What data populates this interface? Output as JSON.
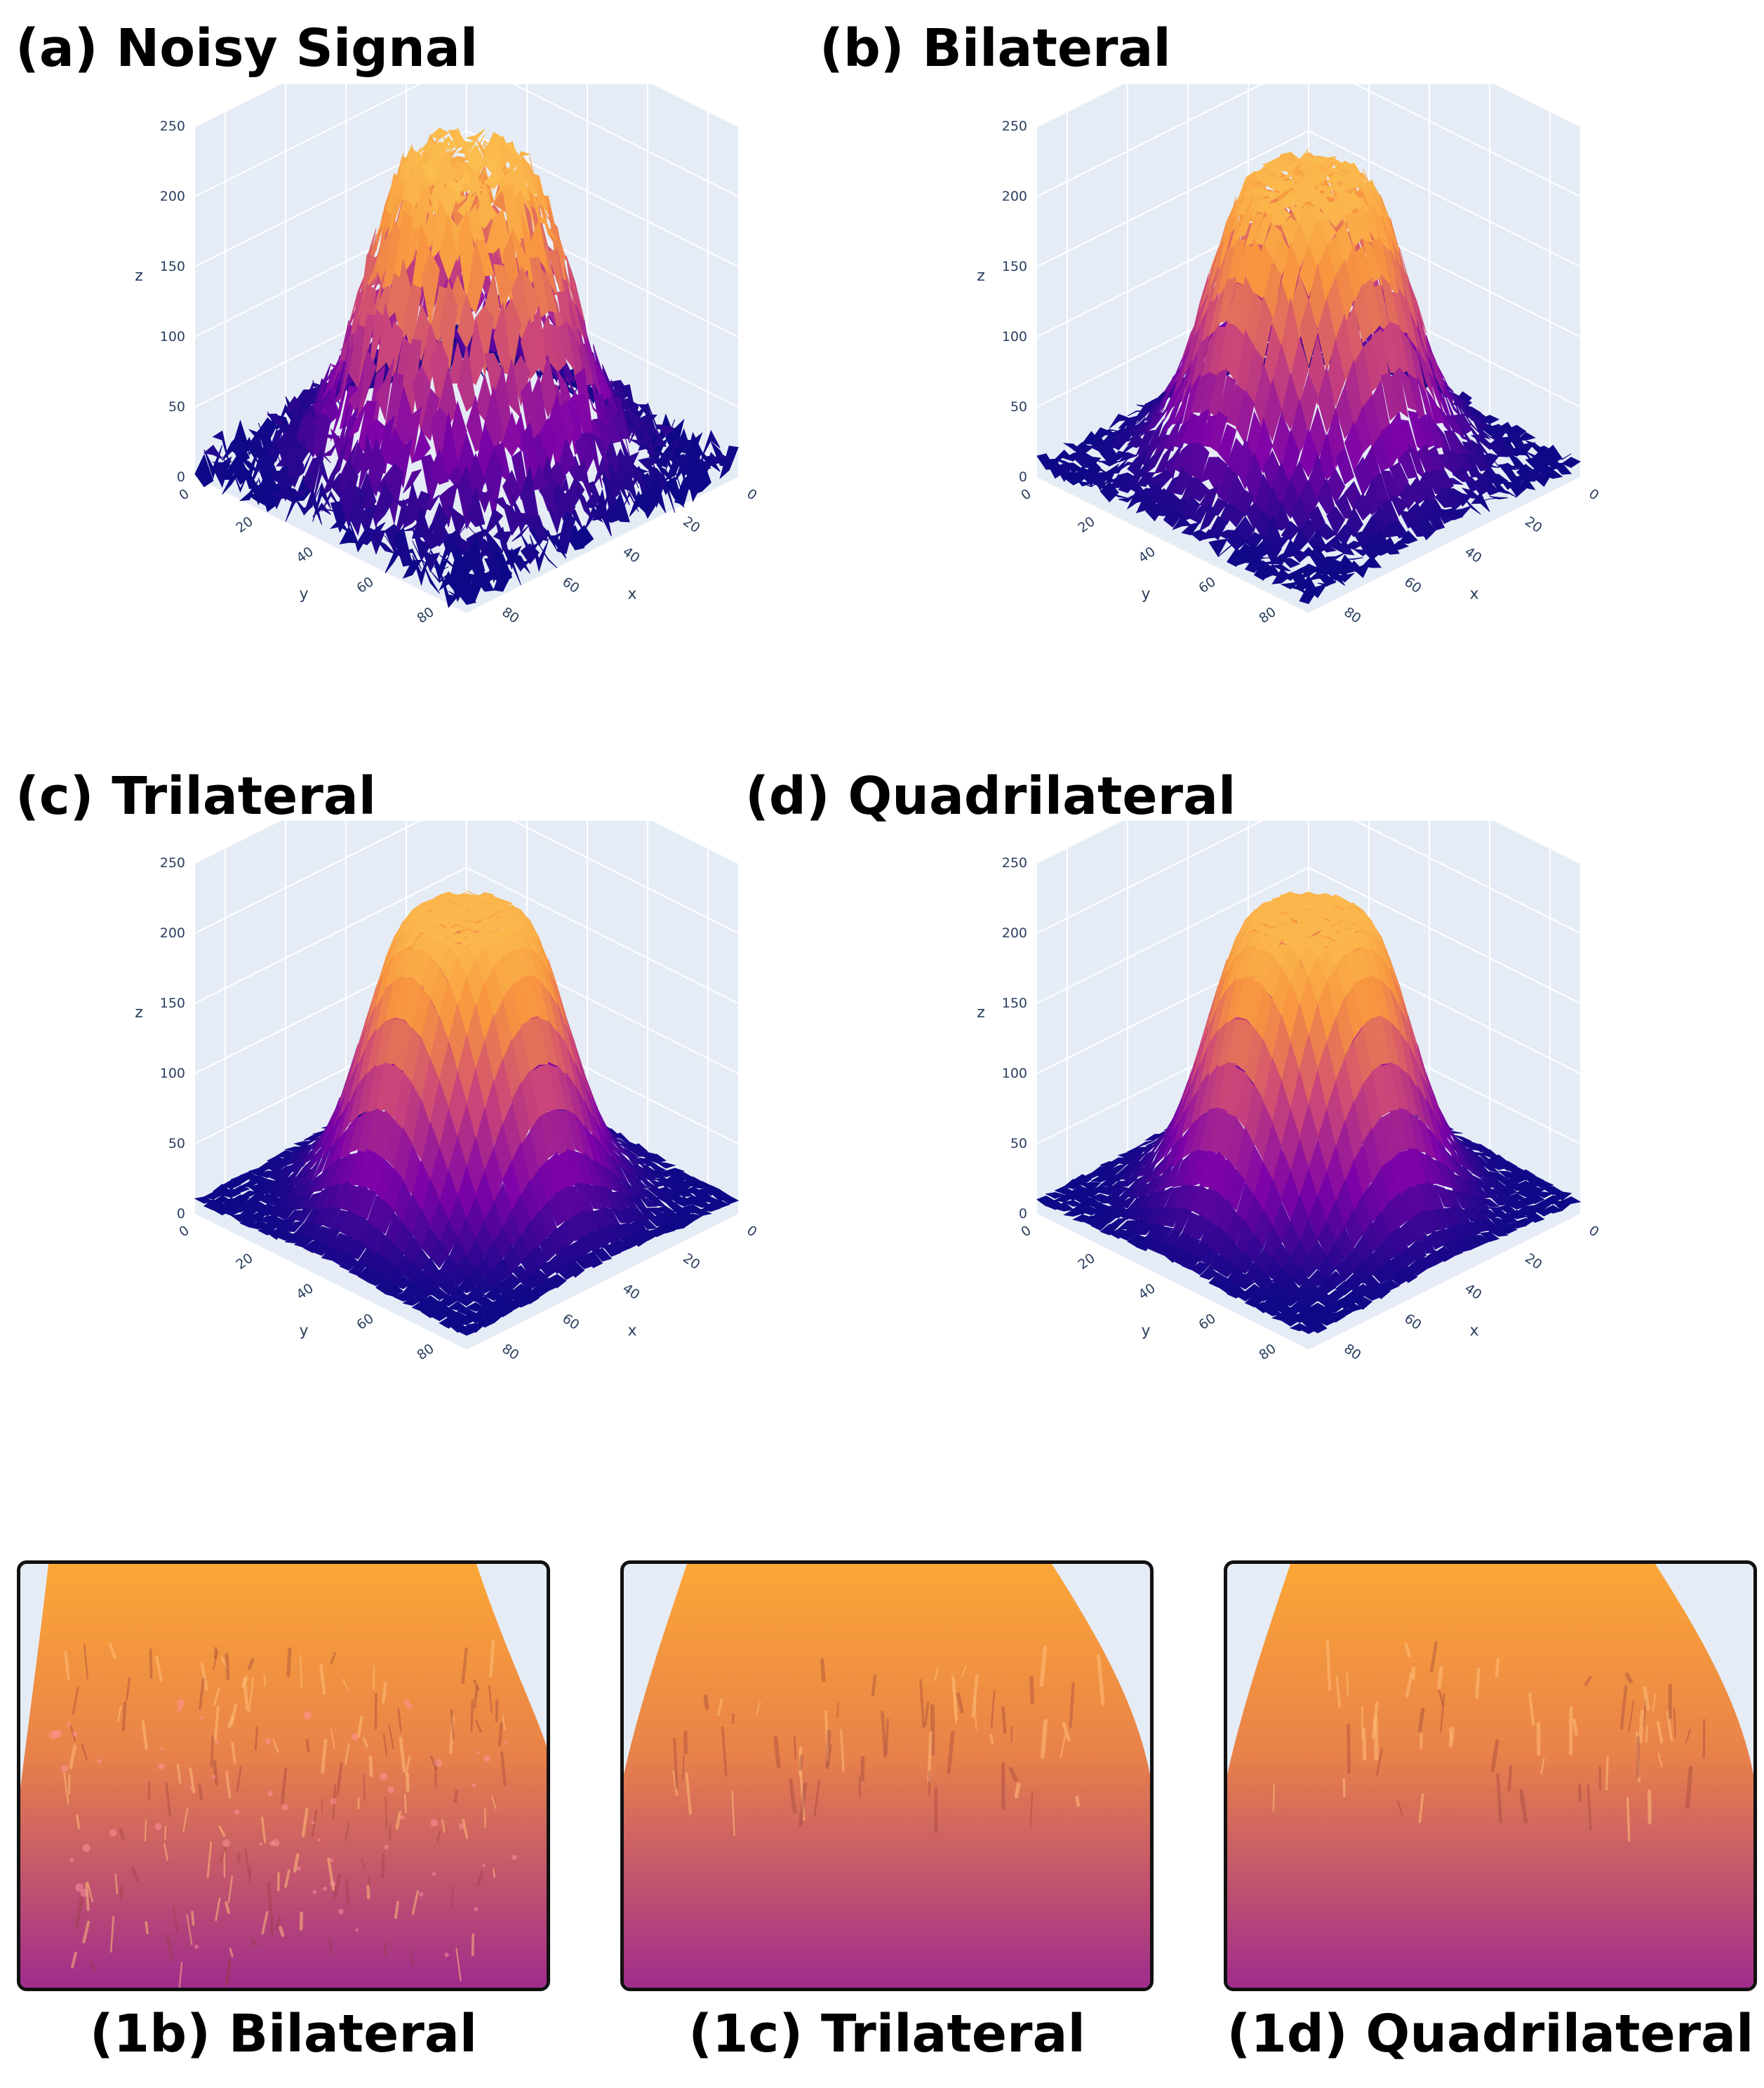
{
  "chart_data": [
    {
      "type": "surface3d",
      "panel": "(a) Noisy Signal",
      "title": "(a) Noisy Signal",
      "xlabel": "x",
      "ylabel": "y",
      "zlabel": "z",
      "x_ticks": [
        "0",
        "20",
        "40",
        "60",
        "80"
      ],
      "y_ticks": [
        "0",
        "20",
        "40",
        "60",
        "80"
      ],
      "z_ticks": [
        "0",
        "50",
        "100",
        "150",
        "200",
        "250"
      ],
      "zlim": [
        0,
        250
      ],
      "colorscale": "plasma",
      "peak_z": 220,
      "base_z": 10,
      "noise": "high"
    },
    {
      "type": "surface3d",
      "panel": "(b) Bilateral",
      "title": "(b) Bilateral",
      "xlabel": "x",
      "ylabel": "y",
      "zlabel": "z",
      "x_ticks": [
        "0",
        "20",
        "40",
        "60",
        "80"
      ],
      "y_ticks": [
        "0",
        "20",
        "40",
        "60",
        "80"
      ],
      "z_ticks": [
        "0",
        "50",
        "100",
        "150",
        "200",
        "250"
      ],
      "zlim": [
        0,
        250
      ],
      "colorscale": "plasma",
      "peak_z": 210,
      "base_z": 10,
      "noise": "medium"
    },
    {
      "type": "surface3d",
      "panel": "(c) Trilateral",
      "title": "(c) Trilateral",
      "xlabel": "x",
      "ylabel": "y",
      "zlabel": "z",
      "x_ticks": [
        "0",
        "20",
        "40",
        "60",
        "80"
      ],
      "y_ticks": [
        "0",
        "20",
        "40",
        "60",
        "80"
      ],
      "z_ticks": [
        "0",
        "50",
        "100",
        "150",
        "200",
        "250"
      ],
      "zlim": [
        0,
        250
      ],
      "colorscale": "plasma",
      "peak_z": 210,
      "base_z": 10,
      "noise": "low"
    },
    {
      "type": "surface3d",
      "panel": "(d) Quadrilateral",
      "title": "(d) Quadrilateral",
      "xlabel": "x",
      "ylabel": "y",
      "zlabel": "z",
      "x_ticks": [
        "0",
        "20",
        "40",
        "60",
        "80"
      ],
      "y_ticks": [
        "0",
        "20",
        "40",
        "60",
        "80"
      ],
      "z_ticks": [
        "0",
        "50",
        "100",
        "150",
        "200",
        "250"
      ],
      "zlim": [
        0,
        250
      ],
      "colorscale": "plasma",
      "peak_z": 210,
      "base_z": 10,
      "noise": "low"
    }
  ],
  "zooms": [
    {
      "label": "(1b) Bilateral",
      "noise": "medium"
    },
    {
      "label": "(1c) Trilateral",
      "noise": "low"
    },
    {
      "label": "(1d) Quadrilateral",
      "noise": "low"
    }
  ],
  "colors": {
    "plot_bg": "#e5ecf6",
    "grid": "#ffffff",
    "tick_text": "#2a3f5f",
    "plasma_low": "#0d0887",
    "plasma_mid": "#9c179e",
    "plasma_high": "#fca636"
  }
}
